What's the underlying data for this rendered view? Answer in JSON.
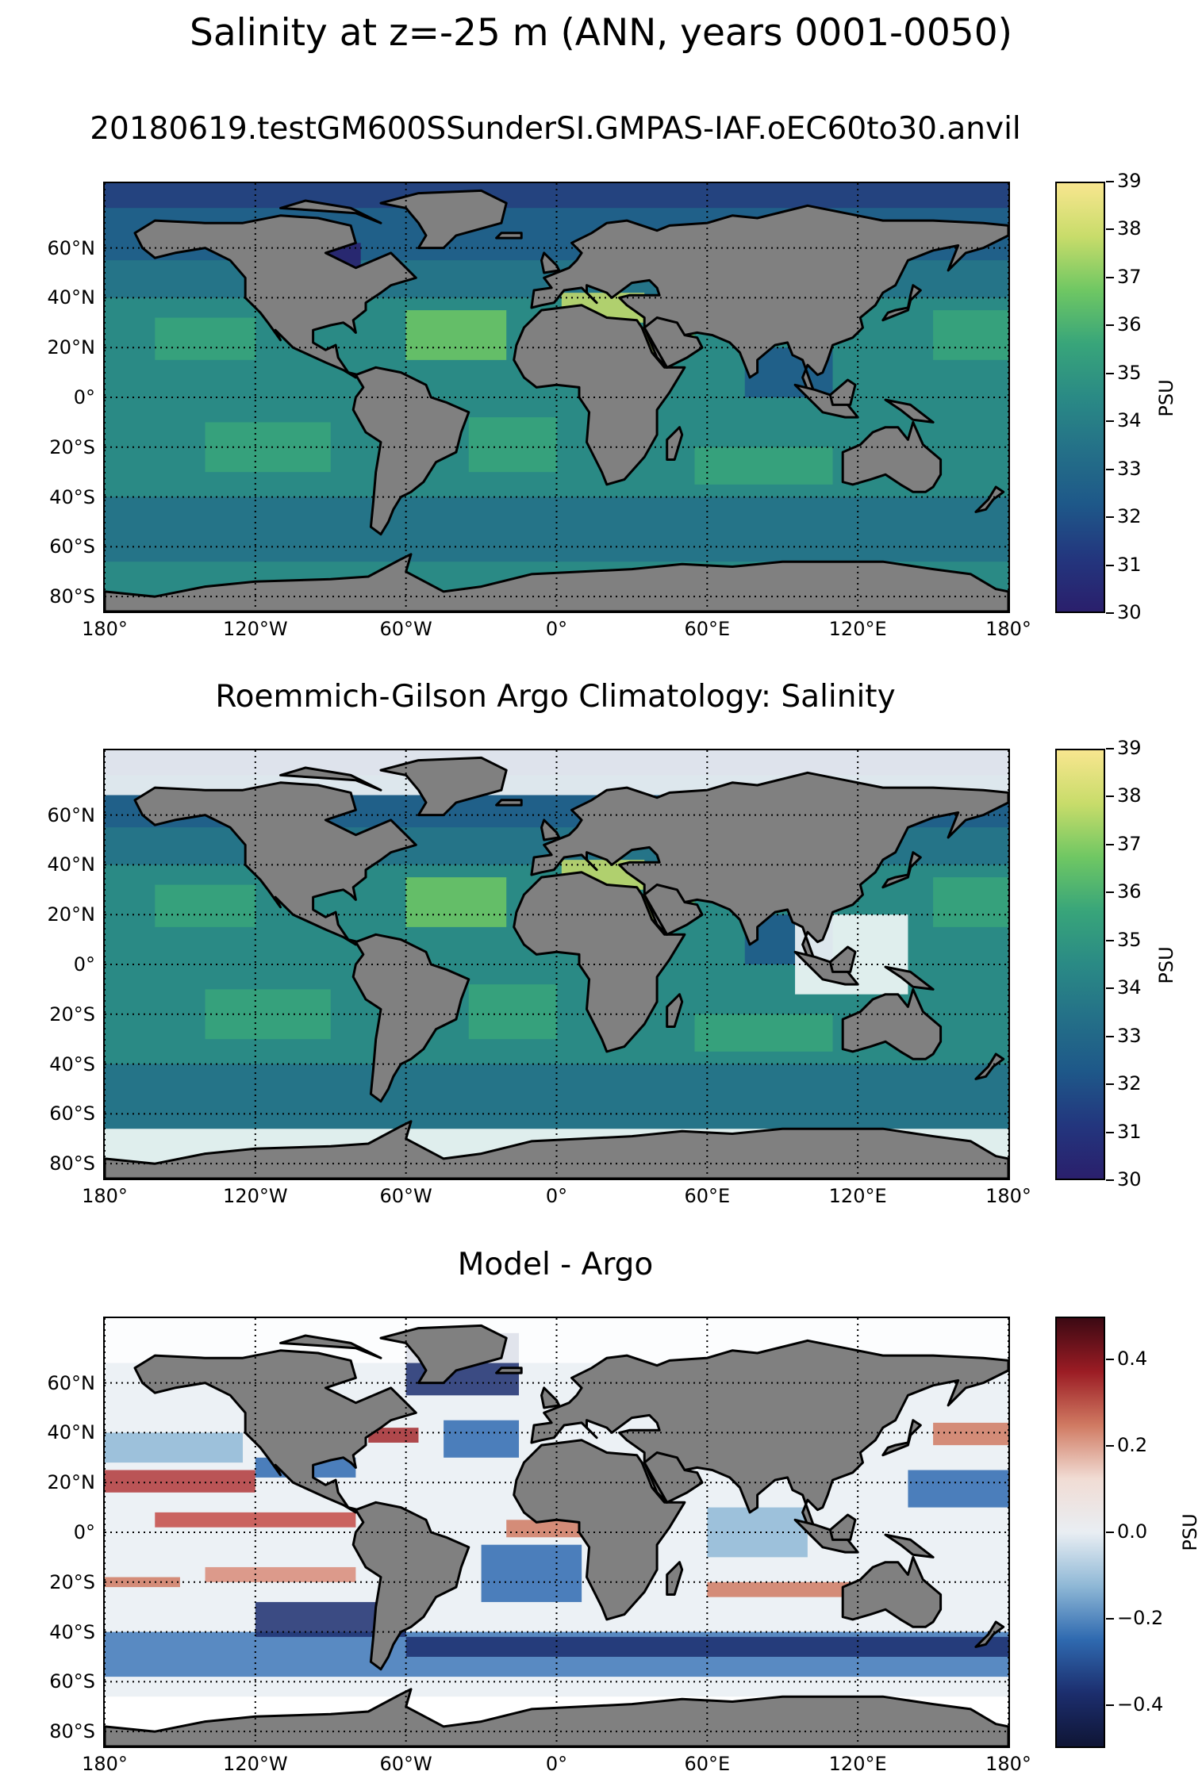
{
  "figure": {
    "title": "Salinity at z=-25 m (ANN, years 0001-0050)"
  },
  "panels": [
    {
      "title": "20180619.testGM600SSunderSI.GMPAS-IAF.oEC60to30.anvil",
      "colorbar": {
        "label": "PSU",
        "ticks": [
          "39",
          "38",
          "37",
          "36",
          "35",
          "34",
          "33",
          "32",
          "31",
          "30"
        ],
        "colors": [
          "#f8e68f",
          "#c8dc6a",
          "#6fc763",
          "#38a57a",
          "#2a8a85",
          "#247088",
          "#1e5889",
          "#23367e",
          "#2a1f6c"
        ]
      }
    },
    {
      "title": "Roemmich-Gilson Argo Climatology: Salinity",
      "colorbar": {
        "label": "PSU",
        "ticks": [
          "39",
          "38",
          "37",
          "36",
          "35",
          "34",
          "33",
          "32",
          "31",
          "30"
        ],
        "colors": [
          "#f8e68f",
          "#c8dc6a",
          "#6fc763",
          "#38a57a",
          "#2a8a85",
          "#247088",
          "#1e5889",
          "#23367e",
          "#2a1f6c"
        ]
      }
    },
    {
      "title": "Model - Argo",
      "colorbar": {
        "label": "PSU",
        "ticks": [
          "0.4",
          "0.2",
          "0.0",
          "−0.2",
          "−0.4"
        ],
        "colors": [
          "#3c0913",
          "#9b1c24",
          "#d07a62",
          "#f1dcd4",
          "#e9eef3",
          "#8fb8d6",
          "#2f6ab0",
          "#1c2e6e",
          "#0f1535"
        ]
      }
    }
  ],
  "axes": {
    "lat_labels": [
      "60°N",
      "40°N",
      "20°N",
      "0°",
      "20°S",
      "40°S",
      "60°S",
      "80°S"
    ],
    "lon_labels": [
      "180°",
      "120°W",
      "60°W",
      "0°",
      "60°E",
      "120°E",
      "180°"
    ]
  },
  "map_colors": {
    "land": "#808080",
    "coast": "#000000",
    "missing": "#ffffff",
    "grid": "#000000"
  }
}
